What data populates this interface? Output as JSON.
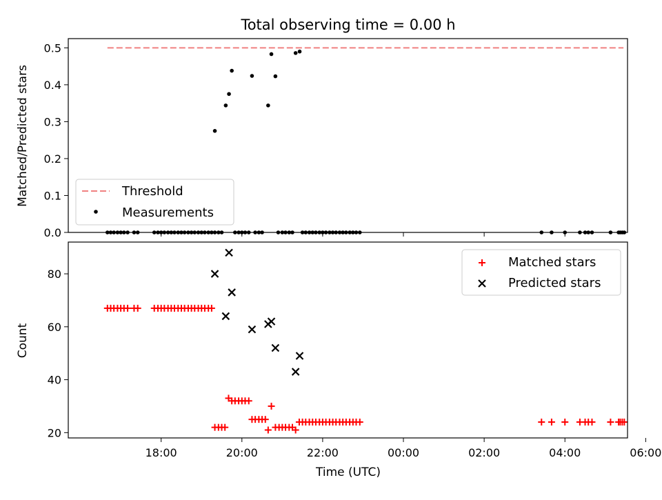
{
  "title": "Total observing time = 0.00 h",
  "chart_data": [
    {
      "type": "scatter",
      "ylabel": "Matched/Predicted stars",
      "ylim": [
        0,
        0.525
      ],
      "yticks": [
        0,
        0.1,
        0.2,
        0.3,
        0.4,
        0.5
      ],
      "ytick_labels": [
        "0.0",
        "0.1",
        "0.2",
        "0.3",
        "0.4",
        "0.5"
      ],
      "legend_position": "lower-left",
      "threshold": {
        "name": "Threshold",
        "value": 0.5,
        "x_start": 16.67,
        "x_end": 29.45,
        "color": "#f08080"
      },
      "series": [
        {
          "name": "Measurements",
          "color": "#000000",
          "marker": "dot",
          "x": [
            19.33,
            19.6,
            19.68,
            19.75,
            20.25,
            20.65,
            20.73,
            20.83,
            21.33,
            21.43,
            16.67,
            16.75,
            16.83,
            16.92,
            17.0,
            17.08,
            17.17,
            17.33,
            17.42,
            17.83,
            17.92,
            18.0,
            18.08,
            18.17,
            18.25,
            18.33,
            18.42,
            18.5,
            18.58,
            18.67,
            18.75,
            18.83,
            18.92,
            19.0,
            19.08,
            19.17,
            19.25,
            19.33,
            19.42,
            19.5,
            19.83,
            19.92,
            20.0,
            20.08,
            20.17,
            20.33,
            20.42,
            20.5,
            20.9,
            21.0,
            21.08,
            21.17,
            21.25,
            21.5,
            21.58,
            21.67,
            21.75,
            21.83,
            21.92,
            22.0,
            22.08,
            22.17,
            22.25,
            22.33,
            22.42,
            22.5,
            22.58,
            22.67,
            22.75,
            22.83,
            22.92,
            27.42,
            27.67,
            28.0,
            28.37,
            28.5,
            28.58,
            28.67,
            29.13,
            29.33,
            29.37,
            29.42,
            29.47
          ],
          "y": [
            0.275,
            0.344,
            0.375,
            0.438,
            0.424,
            0.344,
            0.483,
            0.423,
            0.486,
            0.49,
            0,
            0,
            0,
            0,
            0,
            0,
            0,
            0,
            0,
            0,
            0,
            0,
            0,
            0,
            0,
            0,
            0,
            0,
            0,
            0,
            0,
            0,
            0,
            0,
            0,
            0,
            0,
            0,
            0,
            0,
            0,
            0,
            0,
            0,
            0,
            0,
            0,
            0,
            0,
            0,
            0,
            0,
            0,
            0,
            0,
            0,
            0,
            0,
            0,
            0,
            0,
            0,
            0,
            0,
            0,
            0,
            0,
            0,
            0,
            0,
            0,
            0,
            0,
            0,
            0,
            0,
            0,
            0,
            0,
            0,
            0,
            0,
            0
          ]
        }
      ]
    },
    {
      "type": "scatter",
      "xlabel": "Time (UTC)",
      "ylabel": "Count",
      "xlim": [
        15.7,
        29.55
      ],
      "ylim": [
        18,
        92
      ],
      "xticks": [
        18,
        20,
        22,
        24,
        26,
        28,
        30
      ],
      "xtick_labels": [
        "18:00",
        "20:00",
        "22:00",
        "00:00",
        "02:00",
        "04:00",
        "06:00"
      ],
      "yticks": [
        20,
        40,
        60,
        80
      ],
      "ytick_labels": [
        "20",
        "40",
        "60",
        "80"
      ],
      "legend_position": "upper-right",
      "series": [
        {
          "name": "Matched stars",
          "color": "#ff0000",
          "marker": "plus",
          "x": [
            16.67,
            16.75,
            16.83,
            16.92,
            17.0,
            17.08,
            17.17,
            17.33,
            17.42,
            17.83,
            17.92,
            18.0,
            18.08,
            18.17,
            18.25,
            18.33,
            18.42,
            18.5,
            18.58,
            18.67,
            18.75,
            18.83,
            18.92,
            19.0,
            19.08,
            19.17,
            19.25,
            19.33,
            19.42,
            19.5,
            19.58,
            19.67,
            19.75,
            19.83,
            19.92,
            20.0,
            20.08,
            20.17,
            20.25,
            20.33,
            20.42,
            20.5,
            20.58,
            20.65,
            20.73,
            20.83,
            20.92,
            21.0,
            21.08,
            21.17,
            21.25,
            21.33,
            21.42,
            21.5,
            21.58,
            21.67,
            21.75,
            21.83,
            21.92,
            22.0,
            22.08,
            22.17,
            22.25,
            22.33,
            22.42,
            22.5,
            22.58,
            22.67,
            22.75,
            22.83,
            22.92,
            27.42,
            27.67,
            28.0,
            28.37,
            28.5,
            28.58,
            28.67,
            29.13,
            29.33,
            29.37,
            29.42,
            29.47
          ],
          "y": [
            67,
            67,
            67,
            67,
            67,
            67,
            67,
            67,
            67,
            67,
            67,
            67,
            67,
            67,
            67,
            67,
            67,
            67,
            67,
            67,
            67,
            67,
            67,
            67,
            67,
            67,
            67,
            22,
            22,
            22,
            22,
            33,
            32,
            32,
            32,
            32,
            32,
            32,
            25,
            25,
            25,
            25,
            25,
            21,
            30,
            22,
            22,
            22,
            22,
            22,
            22,
            21,
            24,
            24,
            24,
            24,
            24,
            24,
            24,
            24,
            24,
            24,
            24,
            24,
            24,
            24,
            24,
            24,
            24,
            24,
            24,
            24,
            24,
            24,
            24,
            24,
            24,
            24,
            24,
            24,
            24,
            24,
            24
          ]
        },
        {
          "name": "Predicted stars",
          "color": "#000000",
          "marker": "x",
          "x": [
            19.33,
            19.6,
            19.68,
            19.75,
            20.25,
            20.65,
            20.73,
            20.83,
            21.33,
            21.43
          ],
          "y": [
            80,
            64,
            88,
            73,
            59,
            61,
            62,
            52,
            43,
            49
          ]
        }
      ]
    }
  ]
}
